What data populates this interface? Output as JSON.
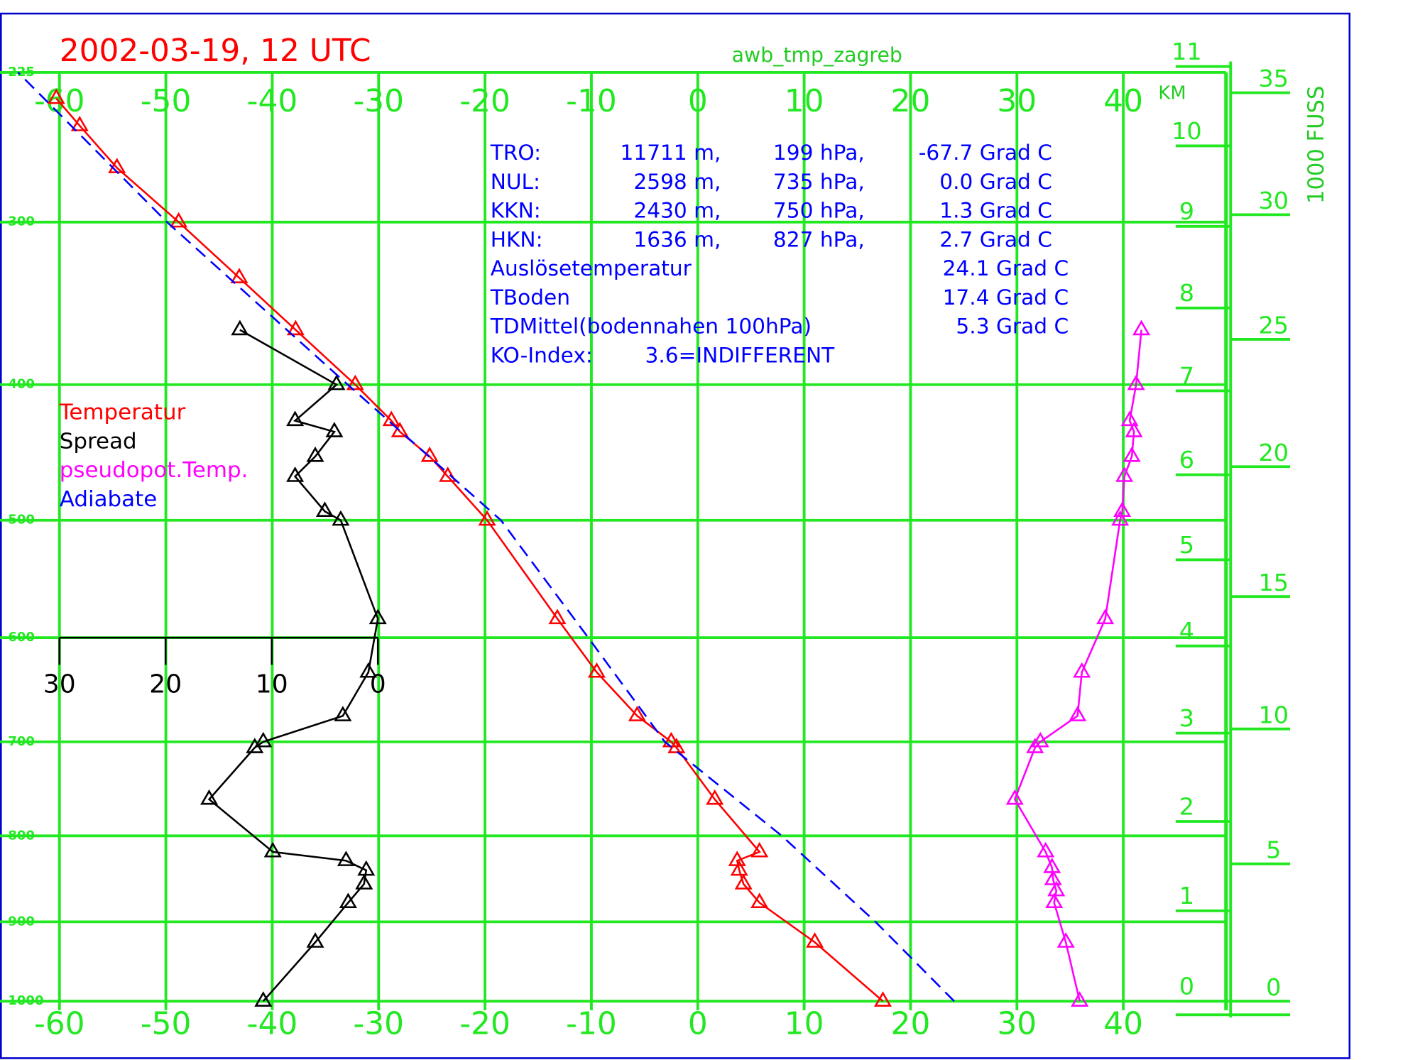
{
  "chart_data": {
    "type": "line",
    "title": "2002-03-19, 12 UTC",
    "subtitle": "awb_tmp_zagreb",
    "xlim": [
      -60,
      50
    ],
    "xticks": [
      -60,
      -50,
      -40,
      -30,
      -20,
      -10,
      0,
      10,
      20,
      30,
      40
    ],
    "ylim": [
      1000,
      225
    ],
    "yticks": [
      {
        "value": 225,
        "label": "-225"
      },
      {
        "value": 300,
        "label": "-300"
      },
      {
        "value": 400,
        "label": "-400"
      },
      {
        "value": 500,
        "label": "-500"
      },
      {
        "value": 600,
        "label": "-600"
      },
      {
        "value": 700,
        "label": "-700"
      },
      {
        "value": 800,
        "label": "-800"
      },
      {
        "value": 900,
        "label": "-900"
      },
      {
        "value": 1000,
        "label": "-1000"
      }
    ],
    "grid": true,
    "spread_xlim": [
      30,
      0
    ],
    "spread_xticks": [
      30,
      20,
      10,
      0
    ],
    "km_label": "KM",
    "km_ticks": [
      0,
      1,
      2,
      3,
      4,
      5,
      6,
      7,
      8,
      9,
      10,
      11
    ],
    "fuss_label": "1000 FUSS",
    "fuss_ticks": [
      0,
      5,
      10,
      15,
      20,
      25,
      30,
      35
    ],
    "series": [
      {
        "name": "Temperatur",
        "color": "#ff0000",
        "marker": "triangle",
        "x": [
          17.4,
          11.0,
          5.8,
          4.3,
          3.9,
          3.7,
          5.8,
          1.6,
          -2.0,
          -2.5,
          -5.7,
          -9.5,
          -13.2,
          -19.8,
          -23.5,
          -25.2,
          -28.0,
          -28.8,
          -32.2,
          -37.8,
          -43.1,
          -48.8,
          -54.6,
          -58.1,
          -60.3
        ],
        "values": [
          1000,
          925,
          877,
          855,
          839,
          828,
          818,
          760,
          706,
          700,
          674,
          632,
          583,
          500,
          466,
          451,
          433,
          425,
          400,
          364,
          332,
          300,
          271,
          250,
          237
        ]
      },
      {
        "name": "Spread",
        "color": "#000000",
        "marker": "triangle",
        "axis": "spread",
        "x": [
          10.8,
          5.9,
          2.8,
          1.3,
          1.1,
          3.0,
          9.9,
          15.9,
          11.6,
          10.8,
          3.3,
          0.9,
          0.0,
          3.5,
          5.0,
          7.8,
          5.9,
          4.1,
          7.8,
          3.9,
          13.0
        ],
        "values": [
          1000,
          925,
          877,
          855,
          839,
          828,
          818,
          760,
          706,
          700,
          674,
          632,
          583,
          500,
          493,
          466,
          451,
          433,
          425,
          400,
          364
        ]
      },
      {
        "name": "pseudopot.Temp.",
        "color": "#ff00ff",
        "marker": "triangle",
        "x": [
          35.9,
          34.6,
          33.5,
          33.7,
          33.4,
          33.3,
          32.7,
          29.8,
          31.7,
          32.2,
          35.7,
          36.1,
          38.3,
          39.7,
          39.9,
          40.1,
          40.8,
          41.0,
          40.6,
          41.2,
          41.7
        ],
        "values": [
          1000,
          925,
          877,
          863,
          850,
          836,
          818,
          760,
          706,
          700,
          674,
          632,
          583,
          500,
          493,
          466,
          451,
          433,
          425,
          400,
          364
        ]
      },
      {
        "name": "Adiabate",
        "color": "#0000ff",
        "dashed": true,
        "x": [
          24.1,
          16.7,
          7.9,
          -3.1,
          -10.3,
          -18.5,
          -32.9,
          -49.9,
          -63.9
        ],
        "values": [
          1000,
          900,
          800,
          700,
          600,
          500,
          400,
          300,
          225
        ]
      }
    ],
    "info": [
      [
        "TRO:",
        "11711 m,",
        "199 hPa,",
        "-67.7 Grad C"
      ],
      [
        "NUL:",
        "2598 m,",
        "735 hPa,",
        "0.0 Grad C"
      ],
      [
        "KKN:",
        "2430 m,",
        "750 hPa,",
        "1.3 Grad C"
      ],
      [
        "HKN:",
        "1636 m,",
        "827 hPa,",
        "2.7 Grad C"
      ],
      [
        "Auslösetemperatur",
        "24.1 Grad C"
      ],
      [
        "TBoden",
        "17.4 Grad C"
      ],
      [
        "TDMittel(bodennahen 100hPa)",
        "5.3 Grad C"
      ],
      [
        "KO-Index:",
        "3.6=INDIFFERENT"
      ]
    ]
  }
}
